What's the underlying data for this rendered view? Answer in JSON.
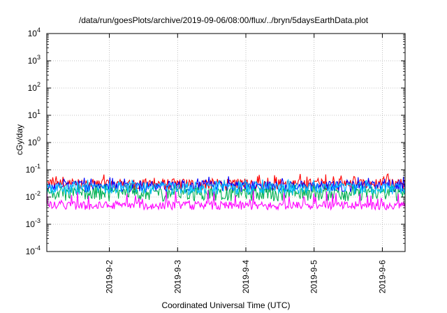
{
  "chart_data": {
    "type": "line",
    "title": "/data/run/goesPlots/archive/2019-09-06/08:00/flux/../bryn/5daysEarthData.plot",
    "xlabel": "Coordinated Universal Time (UTC)",
    "ylabel": "cGy/day",
    "yscale": "log",
    "ylim": [
      0.0001,
      10000
    ],
    "xlim": [
      "2019-09-01T02:00",
      "2019-09-06T08:00"
    ],
    "grid": true,
    "yticks": [
      {
        "value": 0.0001,
        "base": "10",
        "exp": "-4"
      },
      {
        "value": 0.001,
        "base": "10",
        "exp": "-3"
      },
      {
        "value": 0.01,
        "base": "10",
        "exp": "-2"
      },
      {
        "value": 0.1,
        "base": "10",
        "exp": "-1"
      },
      {
        "value": 1,
        "base": "10",
        "exp": "0"
      },
      {
        "value": 10,
        "base": "10",
        "exp": "1"
      },
      {
        "value": 100,
        "base": "10",
        "exp": "2"
      },
      {
        "value": 1000,
        "base": "10",
        "exp": "3"
      },
      {
        "value": 10000,
        "base": "10",
        "exp": "4"
      }
    ],
    "xticks": [
      {
        "value": "2019-09-02T00:00",
        "label": "2019-9-2"
      },
      {
        "value": "2019-09-03T00:00",
        "label": "2019-9-3"
      },
      {
        "value": "2019-09-04T00:00",
        "label": "2019-9-4"
      },
      {
        "value": "2019-09-05T00:00",
        "label": "2019-9-5"
      },
      {
        "value": "2019-09-06T00:00",
        "label": "2019-9-6"
      }
    ],
    "series": [
      {
        "color": "#ff0000",
        "center": 0.032,
        "low": 0.018,
        "high": 0.075
      },
      {
        "color": "#0000ff",
        "center": 0.028,
        "low": 0.015,
        "high": 0.06
      },
      {
        "color": "#00b050",
        "center": 0.016,
        "low": 0.007,
        "high": 0.03
      },
      {
        "color": "#00bfff",
        "center": 0.024,
        "low": 0.012,
        "high": 0.045
      },
      {
        "color": "#ff00ff",
        "center": 0.005,
        "low": 0.0028,
        "high": 0.03
      }
    ]
  }
}
